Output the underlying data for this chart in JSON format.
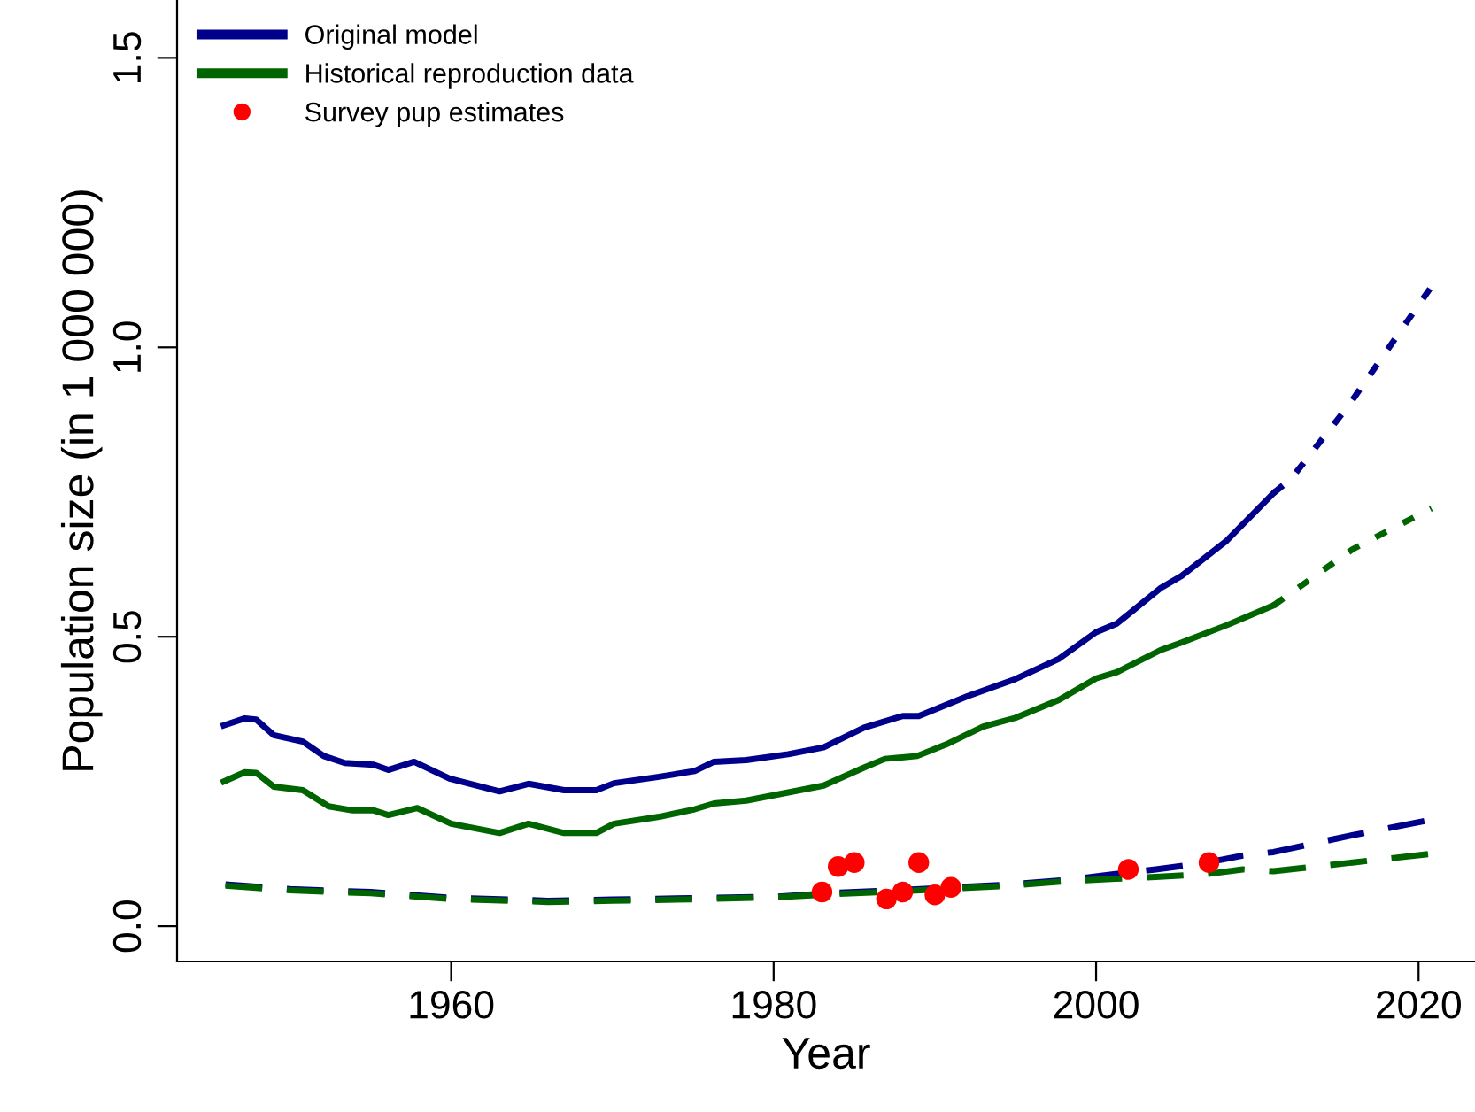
{
  "chart_data": {
    "type": "line",
    "xlabel": "Year",
    "ylabel": "Population size (in 1 000 000)",
    "xlim": [
      1943,
      2023.5
    ],
    "ylim": [
      -0.061,
      1.6
    ],
    "xticks": [
      1960,
      1980,
      2000,
      2020
    ],
    "yticks": [
      {
        "value": 0,
        "label": "0.0"
      },
      {
        "value": 0.5,
        "label": "0.5"
      },
      {
        "value": 1,
        "label": "1.0"
      },
      {
        "value": 1.5,
        "label": "1.5"
      }
    ],
    "grid": false,
    "legend": "top left",
    "series": [
      {
        "name": "Original model",
        "color": "#00008b",
        "line_style": "solid",
        "x": [
          1945.9,
          1947.2,
          1947.9,
          1949.0,
          1950.8,
          1952.1,
          1953.4,
          1955.2,
          1956.1,
          1957.7,
          1959.9,
          1963.0,
          1964.8,
          1967.0,
          1969.0,
          1970.1,
          1972.9,
          1975.1,
          1976.3,
          1978.3,
          1980.9,
          1983.1,
          1985.6,
          1988,
          1989,
          1992,
          1995,
          1997.7,
          2000.0,
          2001.3,
          2004.0,
          2005.3,
          2008.1,
          2011.0
        ],
        "values": [
          0.347,
          0.359,
          0.357,
          0.33,
          0.319,
          0.294,
          0.282,
          0.279,
          0.27,
          0.284,
          0.255,
          0.233,
          0.246,
          0.235,
          0.235,
          0.247,
          0.258,
          0.268,
          0.284,
          0.287,
          0.297,
          0.309,
          0.343,
          0.363,
          0.363,
          0.397,
          0.427,
          0.462,
          0.508,
          0.523,
          0.584,
          0.605,
          0.666,
          0.748
        ]
      },
      {
        "name": "Historical reproduction data",
        "color": "#006400",
        "line_style": "solid",
        "x": [
          1945.9,
          1947.2,
          1947.9,
          1949.0,
          1950.8,
          1952.4,
          1953.9,
          1955.2,
          1956.1,
          1957.9,
          1960.0,
          1963.0,
          1964.8,
          1967.0,
          1969.0,
          1970.1,
          1972.9,
          1975.1,
          1976.3,
          1978.3,
          1983.1,
          1985.6,
          1986.9,
          1988.9,
          1990.7,
          1993,
          1995,
          1997.7,
          2000.0,
          2001.3,
          2004.0,
          2005.3,
          2008.1,
          2011.0
        ],
        "values": [
          0.25,
          0.266,
          0.265,
          0.241,
          0.235,
          0.207,
          0.2,
          0.2,
          0.192,
          0.204,
          0.177,
          0.161,
          0.177,
          0.161,
          0.161,
          0.177,
          0.189,
          0.202,
          0.212,
          0.217,
          0.243,
          0.274,
          0.289,
          0.294,
          0.314,
          0.345,
          0.36,
          0.391,
          0.428,
          0.439,
          0.477,
          0.49,
          0.52,
          0.554
        ]
      },
      {
        "color": "#00008b",
        "line_style": "dotted",
        "x": [
          2011.0,
          2012.1,
          2015.7,
          2020.8
        ],
        "values": [
          0.748,
          0.773,
          0.901,
          1.105
        ]
      },
      {
        "color": "#006400",
        "line_style": "dotted",
        "x": [
          2011.0,
          2015.9,
          2020.8
        ],
        "values": [
          0.554,
          0.651,
          0.722
        ]
      },
      {
        "color": "#00008b",
        "line_style": "dashed",
        "x": [
          1946,
          1950,
          1955,
          1960,
          1966,
          1970,
          1975.8,
          1980.2,
          1983.4,
          1989.1,
          1994.6,
          1998.3,
          2001.2,
          2003.7,
          2006.9,
          2009.1,
          2011.0,
          2015.7,
          2020.8
        ],
        "values": [
          0.072,
          0.064,
          0.059,
          0.049,
          0.044,
          0.046,
          0.049,
          0.051,
          0.057,
          0.064,
          0.072,
          0.08,
          0.09,
          0.098,
          0.11,
          0.122,
          0.128,
          0.156,
          0.184
        ]
      },
      {
        "color": "#006400",
        "line_style": "dashed",
        "x": [
          1946,
          1950,
          1955,
          1960,
          1966,
          1970,
          1975.8,
          1980.2,
          1983.4,
          1989.1,
          1994.6,
          1998.3,
          2001.2,
          2003.7,
          2006.9,
          2009.1,
          2011.0,
          2015.9,
          2020.8
        ],
        "values": [
          0.07,
          0.062,
          0.057,
          0.047,
          0.042,
          0.044,
          0.047,
          0.05,
          0.055,
          0.062,
          0.07,
          0.078,
          0.082,
          0.085,
          0.09,
          0.098,
          0.095,
          0.11,
          0.125
        ]
      },
      {
        "name": "Survey pup estimates",
        "type": "scatter",
        "color": "#ff0000",
        "marker": "circle",
        "x": [
          1983,
          1984,
          1985,
          1987,
          1988,
          1989,
          1990,
          1991,
          2002,
          2007
        ],
        "values": [
          0.059,
          0.103,
          0.11,
          0.047,
          0.059,
          0.11,
          0.054,
          0.067,
          0.098,
          0.11
        ]
      }
    ]
  }
}
